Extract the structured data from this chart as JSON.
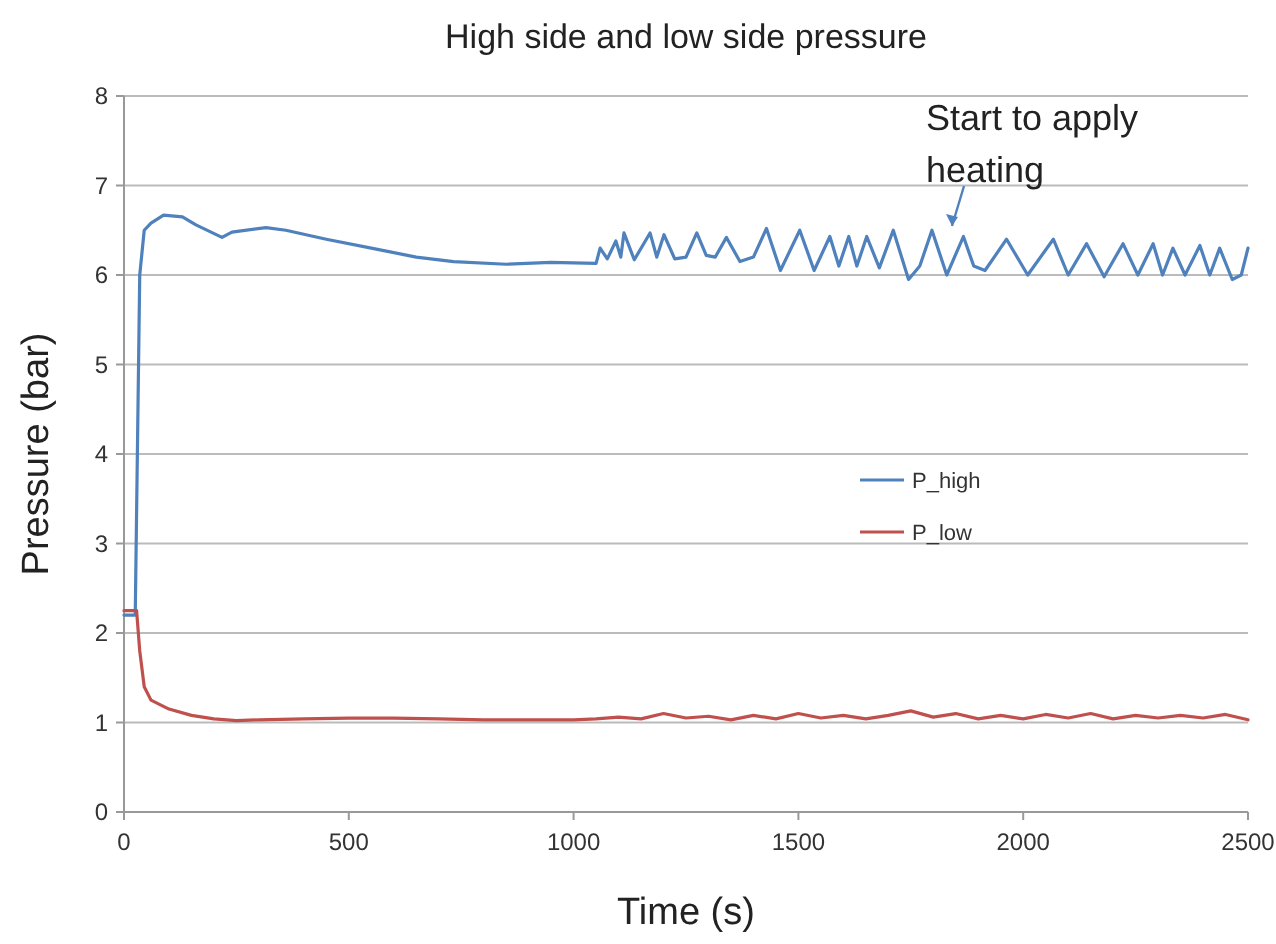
{
  "chart_data": {
    "type": "line",
    "title": "High side and low side pressure",
    "xlabel": "Time (s)",
    "ylabel": "Pressure (bar)",
    "xlim": [
      0,
      2500
    ],
    "xticks": [
      0,
      500,
      1000,
      1500,
      2000,
      2500
    ],
    "ylim": [
      0,
      8
    ],
    "yticks": [
      0,
      1,
      2,
      3,
      4,
      5,
      6,
      7,
      8
    ],
    "grid": "y",
    "legend": "right",
    "marker": "none",
    "line_style": "solid",
    "annotations": [
      "Start to apply heating"
    ],
    "series": [
      {
        "name": "P_high",
        "color": "#4f81bd",
        "x": [
          0,
          25,
          35,
          45,
          60,
          88,
          130,
          160,
          218,
          240,
          316,
          360,
          450,
          550,
          650,
          733,
          850,
          950,
          1050,
          1059,
          1075,
          1094,
          1105,
          1112,
          1135,
          1170,
          1185,
          1201,
          1225,
          1250,
          1274,
          1295,
          1315,
          1340,
          1370,
          1400,
          1429,
          1460,
          1503,
          1535,
          1570,
          1590,
          1612,
          1630,
          1652,
          1680,
          1711,
          1745,
          1770,
          1797,
          1830,
          1867,
          1890,
          1915,
          1963,
          2010,
          2067,
          2100,
          2141,
          2180,
          2222,
          2255,
          2289,
          2310,
          2333,
          2360,
          2393,
          2415,
          2437,
          2465,
          2485,
          2500
        ],
        "values": [
          2.2,
          2.2,
          6.0,
          6.5,
          6.58,
          6.67,
          6.65,
          6.56,
          6.42,
          6.48,
          6.53,
          6.5,
          6.4,
          6.3,
          6.2,
          6.15,
          6.12,
          6.14,
          6.13,
          6.3,
          6.18,
          6.38,
          6.2,
          6.47,
          6.17,
          6.47,
          6.2,
          6.45,
          6.18,
          6.2,
          6.47,
          6.22,
          6.2,
          6.42,
          6.15,
          6.2,
          6.52,
          6.05,
          6.5,
          6.05,
          6.43,
          6.1,
          6.43,
          6.1,
          6.43,
          6.08,
          6.5,
          5.95,
          6.1,
          6.5,
          6.0,
          6.43,
          6.1,
          6.05,
          6.4,
          6.0,
          6.4,
          6.0,
          6.35,
          5.98,
          6.35,
          6.0,
          6.35,
          6.0,
          6.3,
          6.0,
          6.33,
          6.0,
          6.3,
          5.95,
          6.0,
          6.3
        ]
      },
      {
        "name": "P_low",
        "color": "#c0504d",
        "x": [
          0,
          28,
          35,
          45,
          60,
          100,
          150,
          200,
          250,
          300,
          400,
          500,
          600,
          700,
          800,
          900,
          1000,
          1050,
          1100,
          1150,
          1200,
          1250,
          1300,
          1350,
          1400,
          1450,
          1500,
          1550,
          1600,
          1650,
          1700,
          1750,
          1800,
          1850,
          1900,
          1950,
          2000,
          2050,
          2100,
          2150,
          2200,
          2250,
          2300,
          2350,
          2400,
          2450,
          2500
        ],
        "values": [
          2.25,
          2.25,
          1.8,
          1.4,
          1.25,
          1.15,
          1.08,
          1.04,
          1.02,
          1.03,
          1.04,
          1.05,
          1.05,
          1.04,
          1.03,
          1.03,
          1.03,
          1.04,
          1.06,
          1.04,
          1.1,
          1.05,
          1.07,
          1.03,
          1.08,
          1.04,
          1.1,
          1.05,
          1.08,
          1.04,
          1.08,
          1.13,
          1.06,
          1.1,
          1.04,
          1.08,
          1.04,
          1.09,
          1.05,
          1.1,
          1.04,
          1.08,
          1.05,
          1.08,
          1.05,
          1.09,
          1.03
        ]
      }
    ]
  }
}
